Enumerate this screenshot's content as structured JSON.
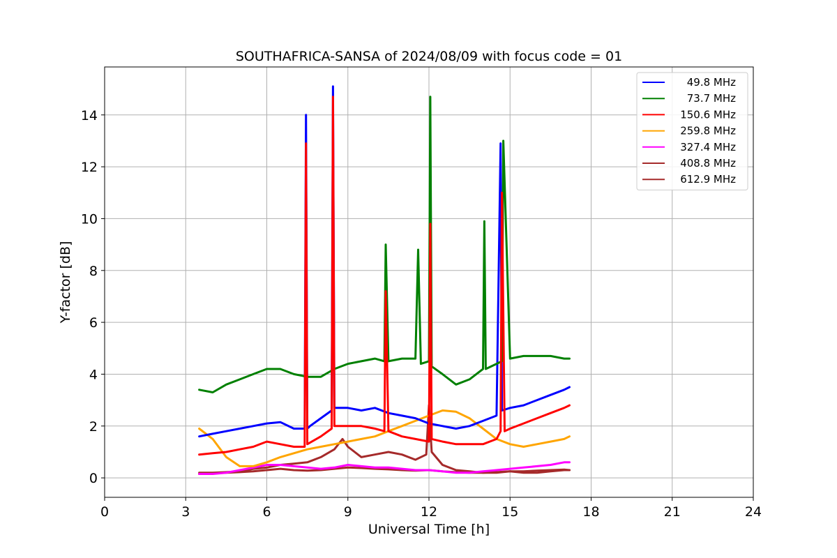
{
  "chart_data": {
    "type": "line",
    "title": "SOUTHAFRICA-SANSA of 2024/08/09 with focus code = 01",
    "xlabel": "Universal Time [h]",
    "ylabel": "Y-factor [dB]",
    "xlim": [
      0,
      24
    ],
    "ylim": [
      -0.75,
      15.85
    ],
    "xticks": [
      0,
      3,
      6,
      9,
      12,
      15,
      18,
      21,
      24
    ],
    "yticks": [
      0,
      2,
      4,
      6,
      8,
      10,
      12,
      14
    ],
    "grid": true,
    "legend_position": "top-right",
    "series": [
      {
        "name": "49.8 MHz",
        "color": "#0000ff",
        "x": [
          3.5,
          4.0,
          4.5,
          5.0,
          5.5,
          6.0,
          6.5,
          7.0,
          7.4,
          7.45,
          7.5,
          7.6,
          8.0,
          8.4,
          8.45,
          8.5,
          9.0,
          9.5,
          10.0,
          10.5,
          11.0,
          11.5,
          12.0,
          12.5,
          13.0,
          13.5,
          14.0,
          14.5,
          14.65,
          14.7,
          15.0,
          15.5,
          16.0,
          16.5,
          17.0,
          17.2
        ],
        "y": [
          1.6,
          1.7,
          1.8,
          1.9,
          2.0,
          2.1,
          2.15,
          1.9,
          1.9,
          14.0,
          1.9,
          2.0,
          2.3,
          2.6,
          15.1,
          2.7,
          2.7,
          2.6,
          2.7,
          2.5,
          2.4,
          2.3,
          2.1,
          2.0,
          1.9,
          2.0,
          2.2,
          2.4,
          12.9,
          2.6,
          2.7,
          2.8,
          3.0,
          3.2,
          3.4,
          3.5
        ]
      },
      {
        "name": "73.7 MHz",
        "color": "#008000",
        "x": [
          3.5,
          4.0,
          4.5,
          5.0,
          5.5,
          6.0,
          6.5,
          7.0,
          7.5,
          8.0,
          8.5,
          9.0,
          9.5,
          10.0,
          10.35,
          10.4,
          10.5,
          11.0,
          11.5,
          11.6,
          11.7,
          12.0,
          12.05,
          12.1,
          12.5,
          13.0,
          13.5,
          14.0,
          14.05,
          14.1,
          14.5,
          14.7,
          14.75,
          15.0,
          15.5,
          16.0,
          16.5,
          17.0,
          17.2
        ],
        "y": [
          3.4,
          3.3,
          3.6,
          3.8,
          4.0,
          4.2,
          4.2,
          4.0,
          3.9,
          3.9,
          4.2,
          4.4,
          4.5,
          4.6,
          4.5,
          9.0,
          4.5,
          4.6,
          4.6,
          8.8,
          4.4,
          4.5,
          14.7,
          4.3,
          4.0,
          3.6,
          3.8,
          4.2,
          9.9,
          4.2,
          4.4,
          4.5,
          13.0,
          4.6,
          4.7,
          4.7,
          4.7,
          4.6,
          4.6
        ]
      },
      {
        "name": "150.6 MHz",
        "color": "#ff0000",
        "x": [
          3.5,
          4.0,
          4.5,
          5.0,
          5.5,
          6.0,
          6.5,
          7.0,
          7.4,
          7.45,
          7.5,
          8.0,
          8.4,
          8.45,
          8.5,
          9.0,
          9.5,
          10.0,
          10.35,
          10.4,
          10.5,
          11.0,
          11.5,
          12.0,
          12.05,
          12.1,
          12.5,
          13.0,
          13.5,
          14.0,
          14.5,
          14.65,
          14.7,
          14.8,
          15.0,
          15.5,
          16.0,
          16.5,
          17.0,
          17.2
        ],
        "y": [
          0.9,
          0.95,
          1.0,
          1.1,
          1.2,
          1.4,
          1.3,
          1.2,
          1.2,
          12.9,
          1.3,
          1.6,
          1.9,
          14.7,
          2.0,
          2.0,
          2.0,
          1.9,
          1.8,
          7.2,
          1.8,
          1.6,
          1.5,
          1.4,
          9.8,
          1.5,
          1.4,
          1.3,
          1.3,
          1.3,
          1.5,
          1.8,
          11.0,
          1.8,
          1.9,
          2.1,
          2.3,
          2.5,
          2.7,
          2.8
        ]
      },
      {
        "name": "259.8 MHz",
        "color": "#ffa500",
        "x": [
          3.5,
          4.0,
          4.5,
          5.0,
          5.5,
          6.0,
          6.5,
          7.0,
          7.5,
          8.0,
          8.5,
          9.0,
          9.5,
          10.0,
          10.5,
          11.0,
          11.5,
          12.0,
          12.5,
          13.0,
          13.5,
          14.0,
          14.5,
          15.0,
          15.5,
          16.0,
          16.5,
          17.0,
          17.2
        ],
        "y": [
          1.9,
          1.5,
          0.8,
          0.45,
          0.45,
          0.6,
          0.8,
          0.95,
          1.1,
          1.2,
          1.3,
          1.4,
          1.5,
          1.6,
          1.8,
          2.0,
          2.2,
          2.4,
          2.6,
          2.55,
          2.3,
          1.9,
          1.5,
          1.3,
          1.2,
          1.3,
          1.4,
          1.5,
          1.6
        ]
      },
      {
        "name": "327.4 MHz",
        "color": "#ff00ff",
        "x": [
          3.5,
          4.0,
          4.5,
          5.0,
          5.5,
          6.0,
          6.5,
          7.0,
          7.5,
          8.0,
          8.5,
          9.0,
          9.5,
          10.0,
          10.5,
          11.0,
          11.5,
          12.0,
          12.5,
          13.0,
          13.5,
          14.0,
          14.5,
          15.0,
          15.5,
          16.0,
          16.5,
          17.0,
          17.2
        ],
        "y": [
          0.15,
          0.15,
          0.2,
          0.3,
          0.4,
          0.5,
          0.5,
          0.45,
          0.4,
          0.35,
          0.4,
          0.5,
          0.45,
          0.4,
          0.4,
          0.35,
          0.3,
          0.3,
          0.25,
          0.2,
          0.2,
          0.25,
          0.3,
          0.35,
          0.4,
          0.45,
          0.5,
          0.6,
          0.6
        ]
      },
      {
        "name": "408.8 MHz",
        "color": "#a52a2a",
        "x": [
          3.5,
          4.0,
          4.5,
          5.0,
          5.5,
          6.0,
          6.5,
          7.0,
          7.5,
          8.0,
          8.5,
          9.0,
          9.5,
          10.0,
          10.5,
          11.0,
          11.5,
          12.0,
          12.5,
          13.0,
          13.5,
          14.0,
          14.5,
          15.0,
          15.5,
          16.0,
          16.5,
          17.0,
          17.2
        ],
        "y": [
          0.15,
          0.18,
          0.2,
          0.22,
          0.25,
          0.3,
          0.35,
          0.3,
          0.28,
          0.3,
          0.35,
          0.4,
          0.38,
          0.35,
          0.33,
          0.3,
          0.28,
          0.3,
          0.25,
          0.22,
          0.2,
          0.2,
          0.22,
          0.25,
          0.25,
          0.28,
          0.3,
          0.32,
          0.3
        ]
      },
      {
        "name": "612.9 MHz",
        "color": "#a52a2a",
        "x": [
          3.5,
          4.0,
          4.5,
          5.0,
          5.5,
          6.0,
          6.5,
          7.0,
          7.5,
          8.0,
          8.5,
          8.8,
          9.0,
          9.5,
          10.0,
          10.5,
          11.0,
          11.5,
          11.9,
          12.0,
          12.1,
          12.5,
          13.0,
          13.5,
          14.0,
          14.5,
          15.0,
          15.5,
          16.0,
          16.5,
          17.0,
          17.2
        ],
        "y": [
          0.2,
          0.2,
          0.22,
          0.25,
          0.35,
          0.4,
          0.5,
          0.55,
          0.6,
          0.8,
          1.1,
          1.5,
          1.2,
          0.8,
          0.9,
          1.0,
          0.9,
          0.7,
          0.9,
          2.8,
          1.0,
          0.5,
          0.3,
          0.25,
          0.2,
          0.2,
          0.25,
          0.2,
          0.2,
          0.25,
          0.3,
          0.3
        ]
      }
    ]
  }
}
